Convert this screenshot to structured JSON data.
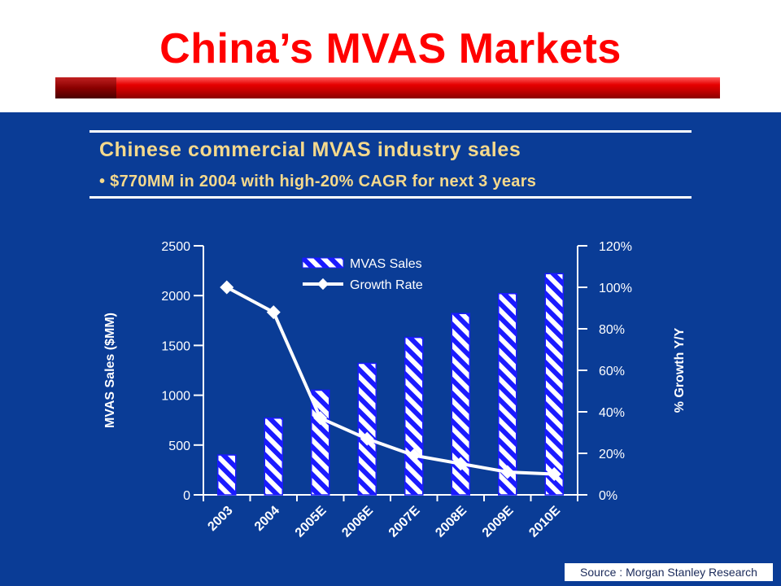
{
  "slide": {
    "title": "China’s MVAS Markets",
    "source": "Source : Morgan Stanley Research"
  },
  "colors": {
    "title_red": "#ff0000",
    "panel_blue": "#0a3c96",
    "heading_gold": "#f5d98c",
    "bar_stripe": "#1a1aff",
    "line_white": "#ffffff"
  },
  "chart_data": {
    "type": "bar",
    "title": "Chinese commercial MVAS industry sales",
    "subtitle": "• $770MM in 2004 with high-20% CAGR  for next 3 years",
    "categories": [
      "2003",
      "2004",
      "2005E",
      "2006E",
      "2007E",
      "2008E",
      "2009E",
      "2010E"
    ],
    "series": [
      {
        "name": "MVAS Sales",
        "kind": "bar",
        "axis": "left",
        "values": [
          400,
          770,
          1050,
          1320,
          1580,
          1820,
          2020,
          2220
        ]
      },
      {
        "name": "Growth Rate",
        "kind": "line",
        "axis": "right",
        "values": [
          100,
          88,
          37,
          27,
          19,
          15,
          11,
          10
        ]
      }
    ],
    "ylabel": "MVAS Sales ($MM)",
    "ylabel_right": "% Growth Y/Y",
    "ylim": [
      0,
      2500
    ],
    "ylim_right": [
      0,
      120
    ],
    "yticks": [
      0,
      500,
      1000,
      1500,
      2000,
      2500
    ],
    "yticks_right": [
      "0%",
      "20%",
      "40%",
      "60%",
      "80%",
      "100%",
      "120%"
    ],
    "grid": false,
    "legend": "top-center"
  }
}
